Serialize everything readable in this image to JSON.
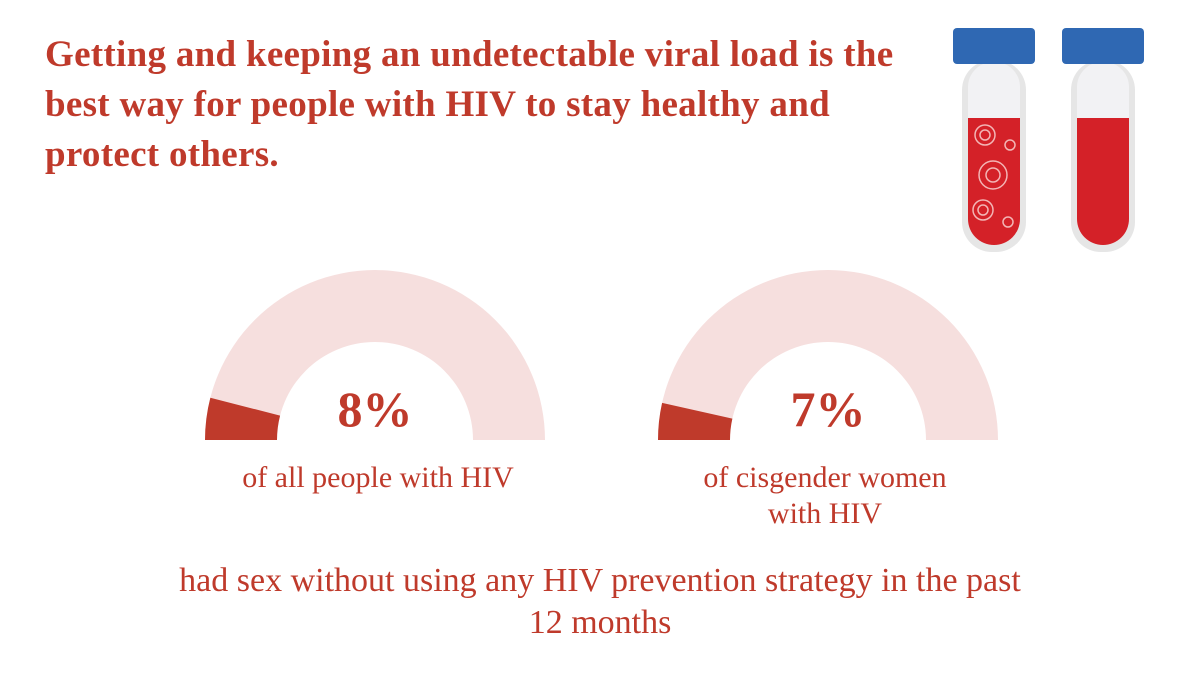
{
  "title": "Getting and keeping an undetectable viral load is the best way for people with HIV to stay healthy and protect others.",
  "note": "had sex without using any HIV prevention strategy in the past 12 months",
  "chart_data": [
    {
      "type": "gauge",
      "values": [
        8
      ],
      "value_labels": [
        "8%"
      ],
      "ylim": [
        0,
        100
      ],
      "caption": "of all people with HIV",
      "color": "#bf3a2b",
      "track_color": "#f6dfde"
    },
    {
      "type": "gauge",
      "values": [
        7
      ],
      "value_labels": [
        "7%"
      ],
      "ylim": [
        0,
        100
      ],
      "caption": "of cisgender women with HIV",
      "color": "#bf3a2b",
      "track_color": "#f6dfde"
    }
  ]
}
